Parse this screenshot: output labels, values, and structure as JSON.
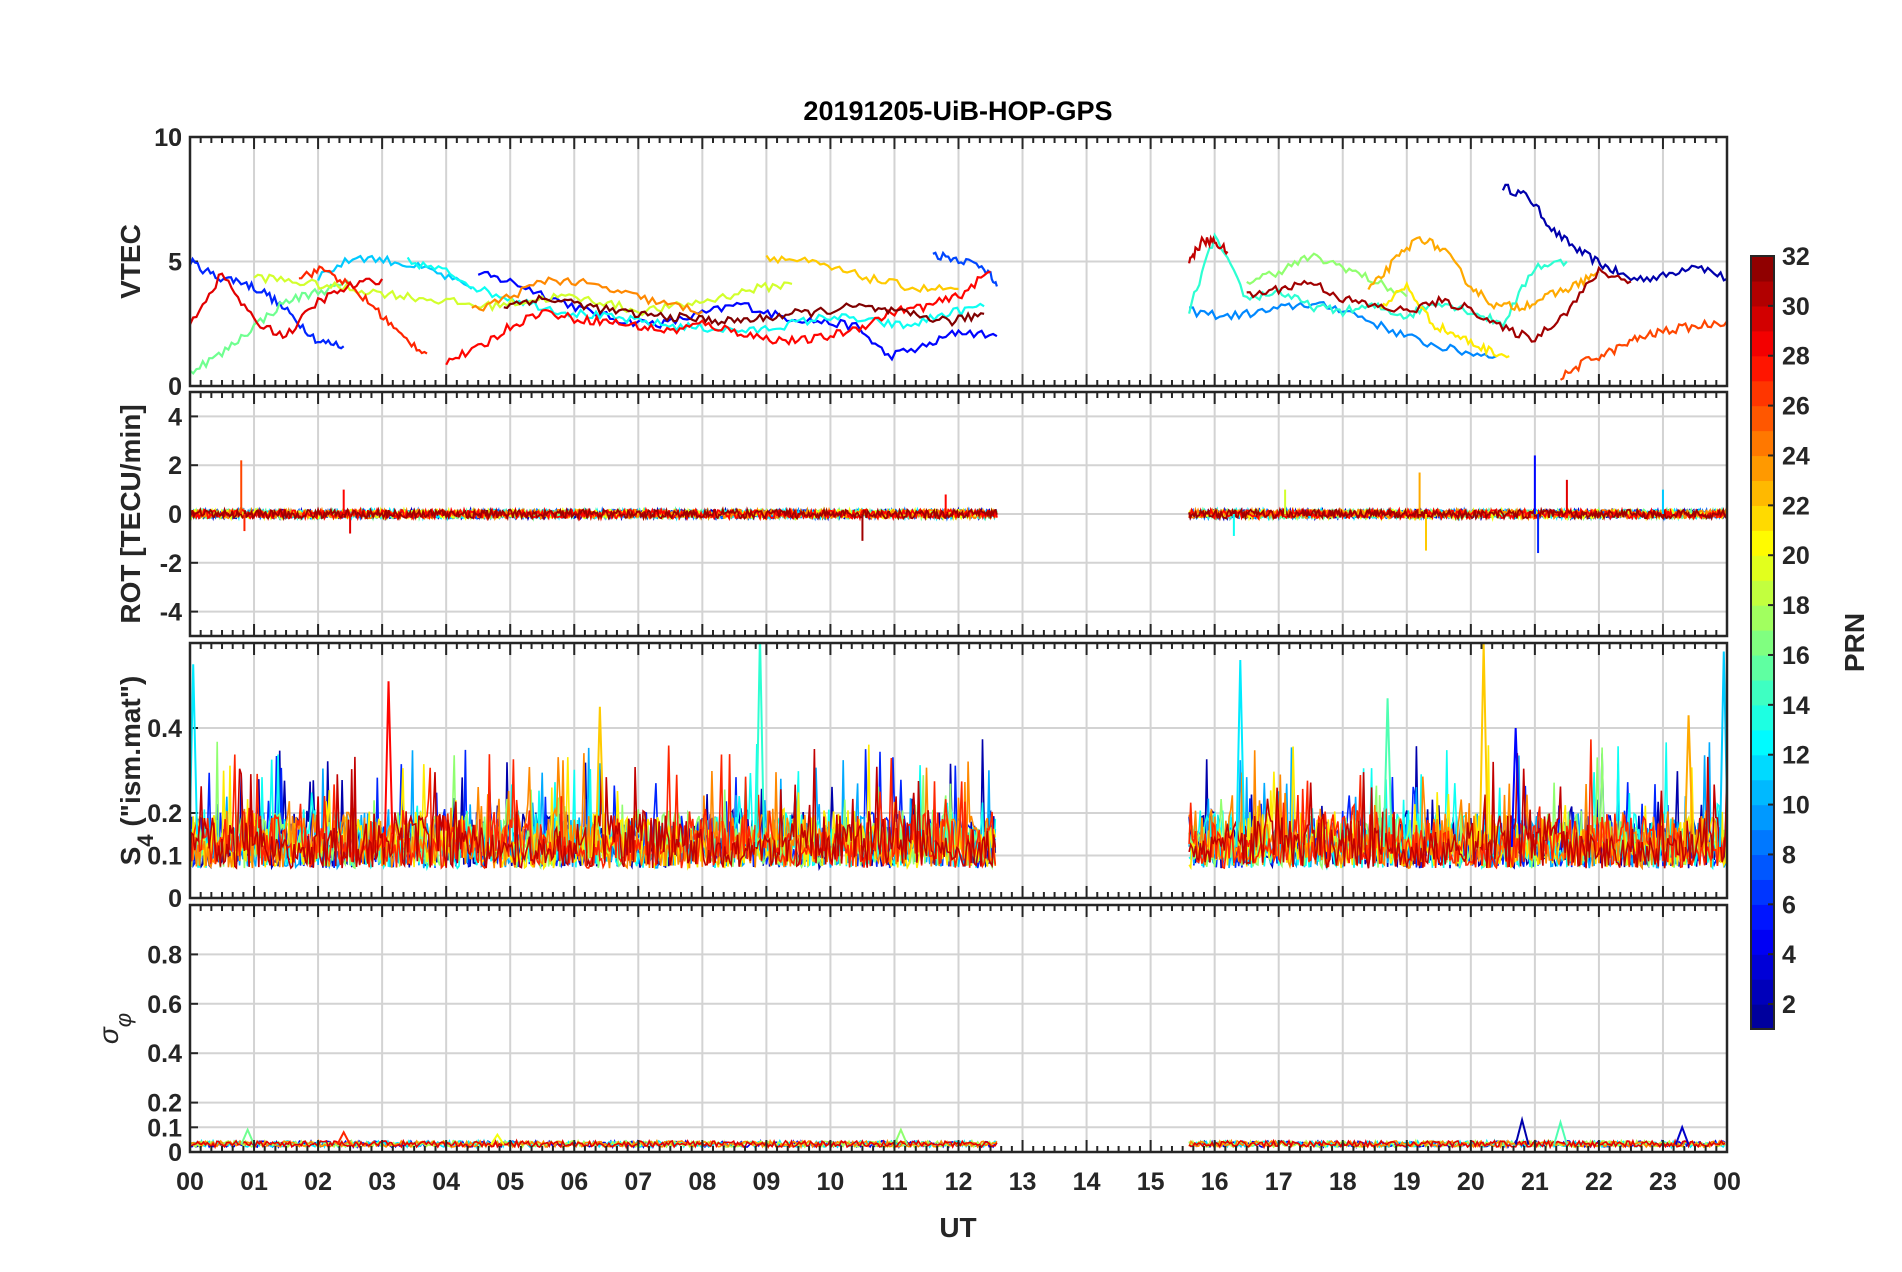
{
  "title": "20191205-UiB-HOP-GPS",
  "xlabel": "UT",
  "x_ticks": [
    "00",
    "01",
    "02",
    "03",
    "04",
    "05",
    "06",
    "07",
    "08",
    "09",
    "10",
    "11",
    "12",
    "13",
    "14",
    "15",
    "16",
    "17",
    "18",
    "19",
    "20",
    "21",
    "22",
    "23",
    "00"
  ],
  "colors": {
    "axes": "#262626",
    "grid": "#d3d3d3",
    "jet_colormap": [
      "#00008f",
      "#0000ff",
      "#0080ff",
      "#00ffff",
      "#80ff80",
      "#ffff00",
      "#ff8000",
      "#ff0000",
      "#800000"
    ]
  },
  "colorbar": {
    "label": "PRN",
    "range": [
      1,
      32
    ],
    "ticks": [
      "2",
      "4",
      "6",
      "8",
      "10",
      "12",
      "14",
      "16",
      "18",
      "20",
      "22",
      "24",
      "26",
      "28",
      "30",
      "32"
    ]
  },
  "chart_data": [
    {
      "type": "line",
      "ylabel": "VTEC",
      "ylim": [
        0,
        10
      ],
      "y_ticks": [
        "0",
        "5",
        "10"
      ],
      "xlim": [
        0,
        24
      ],
      "grid": true,
      "series": [
        {
          "prn": 2,
          "x": [
            20.5,
            20.9,
            21.3,
            21.7,
            22.1,
            22.5,
            23.0,
            23.5,
            24.0
          ],
          "y": [
            8.0,
            7.6,
            6.2,
            5.4,
            4.8,
            4.3,
            4.4,
            4.9,
            4.3
          ]
        },
        {
          "prn": 5,
          "x": [
            4.5,
            5.0,
            5.6,
            6.2,
            6.8,
            7.4,
            8.0,
            8.6,
            9.2,
            9.8,
            10.4,
            10.9,
            11.5,
            12.0,
            12.6
          ],
          "y": [
            4.5,
            4.2,
            3.6,
            3.0,
            2.6,
            2.5,
            2.9,
            3.3,
            2.8,
            2.6,
            2.4,
            1.2,
            1.6,
            2.2,
            2.0
          ]
        },
        {
          "prn": 6,
          "x": [
            0.0,
            0.4,
            0.8,
            1.2,
            1.6,
            2.0,
            2.4
          ],
          "y": [
            5.0,
            4.4,
            4.2,
            3.7,
            2.8,
            1.8,
            1.6
          ]
        },
        {
          "prn": 7,
          "x": [
            11.6,
            12.0,
            12.4,
            12.6
          ],
          "y": [
            5.3,
            5.1,
            4.8,
            4.0
          ]
        },
        {
          "prn": 9,
          "x": [
            15.6,
            16.2,
            16.8,
            17.4,
            18.0,
            18.6,
            19.2,
            19.8,
            20.4
          ],
          "y": [
            3.0,
            2.8,
            3.0,
            3.3,
            3.1,
            2.4,
            1.8,
            1.4,
            1.2
          ]
        },
        {
          "prn": 11,
          "x": [
            2.0,
            2.6,
            3.2,
            3.8,
            4.4
          ],
          "y": [
            4.4,
            5.2,
            5.0,
            4.6,
            3.9
          ]
        },
        {
          "prn": 13,
          "x": [
            3.4,
            4.0,
            4.6,
            5.2,
            5.8,
            6.4,
            7.0,
            7.6,
            8.2,
            8.8,
            9.4,
            10.0,
            10.6,
            11.2,
            11.8,
            12.4
          ],
          "y": [
            5.0,
            4.6,
            3.8,
            3.4,
            3.0,
            2.8,
            2.6,
            2.4,
            2.3,
            2.2,
            2.5,
            2.8,
            2.6,
            2.4,
            2.9,
            3.2
          ]
        },
        {
          "prn": 14,
          "x": [
            15.6,
            16.0,
            16.5,
            17.0,
            17.5,
            18.0,
            18.5,
            19.0,
            19.5,
            20.0,
            20.5,
            21.0,
            21.5
          ],
          "y": [
            3.0,
            6.0,
            3.5,
            3.8,
            3.2,
            3.0,
            3.2,
            2.8,
            3.4,
            3.0,
            2.5,
            4.8,
            5.0
          ]
        },
        {
          "prn": 16,
          "x": [
            0.0,
            0.5,
            1.0,
            1.5,
            2.0,
            2.5
          ],
          "y": [
            0.6,
            1.3,
            2.4,
            3.4,
            3.8,
            4.1
          ]
        },
        {
          "prn": 17,
          "x": [
            16.5,
            17.0,
            17.5,
            18.0,
            18.5,
            19.0
          ],
          "y": [
            4.2,
            4.6,
            5.2,
            4.8,
            4.2,
            3.6
          ]
        },
        {
          "prn": 19,
          "x": [
            1.0,
            1.6,
            2.2,
            2.8,
            3.4,
            4.0,
            4.6,
            5.2,
            5.8,
            6.4,
            7.0,
            7.6,
            8.2,
            8.8,
            9.4
          ],
          "y": [
            4.4,
            4.2,
            4.0,
            3.8,
            3.6,
            3.4,
            3.2,
            3.4,
            3.6,
            3.4,
            3.0,
            3.2,
            3.5,
            3.9,
            4.1
          ]
        },
        {
          "prn": 21,
          "x": [
            18.6,
            19.0,
            19.4,
            19.8,
            20.2,
            20.6
          ],
          "y": [
            3.2,
            4.0,
            2.5,
            2.0,
            1.5,
            1.2
          ]
        },
        {
          "prn": 22,
          "x": [
            9.0,
            9.6,
            10.2,
            10.8,
            11.4,
            12.0
          ],
          "y": [
            5.2,
            5.0,
            4.6,
            4.2,
            3.9,
            3.9
          ]
        },
        {
          "prn": 23,
          "x": [
            18.4,
            18.8,
            19.2,
            19.6,
            20.0,
            20.4,
            20.8,
            21.2,
            21.6,
            22.0
          ],
          "y": [
            3.8,
            5.0,
            6.0,
            5.4,
            4.0,
            3.2,
            3.2,
            3.6,
            4.0,
            4.6
          ]
        },
        {
          "prn": 24,
          "x": [
            4.4,
            5.0,
            5.6,
            6.2,
            6.8,
            7.4,
            8.0
          ],
          "y": [
            3.0,
            3.6,
            4.3,
            4.1,
            3.7,
            3.3,
            3.0
          ]
        },
        {
          "prn": 26,
          "x": [
            21.4,
            21.8,
            22.2,
            22.6,
            23.0,
            23.5,
            24.0
          ],
          "y": [
            0.3,
            1.0,
            1.4,
            1.9,
            2.2,
            2.4,
            2.6
          ]
        },
        {
          "prn": 27,
          "x": [
            1.7,
            2.1,
            2.5,
            2.9,
            3.3,
            3.7
          ],
          "y": [
            4.4,
            4.7,
            4.0,
            3.1,
            2.0,
            1.3
          ]
        },
        {
          "prn": 28,
          "x": [
            4.0,
            4.5,
            5.0,
            5.5,
            6.0,
            6.5,
            7.0,
            7.5,
            8.0,
            8.5,
            9.0,
            9.5,
            10.0,
            10.5,
            11.0,
            11.5,
            12.0,
            12.5
          ],
          "y": [
            1.0,
            1.5,
            2.4,
            3.0,
            2.7,
            2.6,
            2.4,
            2.2,
            2.5,
            2.2,
            1.9,
            1.8,
            2.0,
            2.4,
            3.0,
            3.2,
            3.6,
            4.6
          ]
        },
        {
          "prn": 29,
          "x": [
            0.0,
            0.5,
            1.0,
            1.5,
            2.0,
            2.5,
            3.0
          ],
          "y": [
            2.5,
            4.5,
            2.6,
            2.0,
            3.4,
            4.0,
            4.3
          ]
        },
        {
          "prn": 30,
          "x": [
            15.6,
            15.8,
            16.0,
            16.2
          ],
          "y": [
            5.0,
            5.8,
            5.8,
            5.4
          ]
        },
        {
          "prn": 31,
          "x": [
            16.5,
            17.0,
            17.5,
            18.0,
            18.5,
            19.0,
            19.5,
            20.0,
            20.5,
            21.0,
            21.5,
            22.0,
            22.5
          ],
          "y": [
            3.6,
            3.9,
            4.2,
            3.5,
            3.2,
            3.0,
            3.4,
            3.1,
            2.3,
            1.9,
            3.0,
            4.6,
            4.2
          ]
        },
        {
          "prn": 32,
          "x": [
            4.9,
            5.4,
            5.9,
            6.4,
            6.9,
            7.4,
            7.9,
            8.4,
            8.9,
            9.4,
            9.9,
            10.4,
            10.9,
            11.4,
            11.9,
            12.4
          ],
          "y": [
            3.2,
            3.5,
            3.4,
            3.1,
            2.9,
            2.8,
            2.7,
            2.6,
            2.7,
            2.9,
            3.0,
            3.2,
            3.0,
            2.8,
            2.6,
            2.9
          ]
        }
      ]
    },
    {
      "type": "line",
      "ylabel": "ROT [TECU/min]",
      "ylim": [
        -5,
        5
      ],
      "y_ticks": [
        "-4",
        "-2",
        "0",
        "2",
        "4"
      ],
      "xlim": [
        0,
        24
      ],
      "grid": true,
      "note_segments": [
        [
          0,
          12.6
        ],
        [
          15.6,
          24
        ]
      ],
      "noise_level": 0.18,
      "spikes": [
        {
          "x": 0.8,
          "y": 2.2,
          "prn": 26
        },
        {
          "x": 0.85,
          "y": -0.7,
          "prn": 27
        },
        {
          "x": 2.4,
          "y": 1.0,
          "prn": 28
        },
        {
          "x": 2.5,
          "y": -0.8,
          "prn": 29
        },
        {
          "x": 10.5,
          "y": -1.1,
          "prn": 31
        },
        {
          "x": 11.8,
          "y": 0.8,
          "prn": 28
        },
        {
          "x": 19.2,
          "y": 1.7,
          "prn": 23
        },
        {
          "x": 19.3,
          "y": -1.5,
          "prn": 22
        },
        {
          "x": 21.0,
          "y": 2.4,
          "prn": 5
        },
        {
          "x": 21.05,
          "y": -1.6,
          "prn": 6
        },
        {
          "x": 21.5,
          "y": 1.4,
          "prn": 29
        },
        {
          "x": 16.3,
          "y": -0.9,
          "prn": 13
        },
        {
          "x": 17.1,
          "y": 1.0,
          "prn": 19
        },
        {
          "x": 23.0,
          "y": 1.0,
          "prn": 11
        }
      ]
    },
    {
      "type": "line",
      "ylabel": "S4 (\"ism.mat\")",
      "ylabel_main": "S",
      "ylabel_sub": "4",
      "ylabel_rest": " (\"ism.mat\")",
      "ylim": [
        0,
        0.6
      ],
      "y_ticks": [
        "0",
        "0.1",
        "0.2",
        "0.4"
      ],
      "y_tick_values": [
        0,
        0.1,
        0.2,
        0.4
      ],
      "xlim": [
        0,
        24
      ],
      "grid": true,
      "note_segments": [
        [
          0,
          12.6
        ],
        [
          15.6,
          24
        ]
      ],
      "baseline": 0.07,
      "peaks": [
        {
          "x": 0.05,
          "y": 0.55,
          "prn": 12
        },
        {
          "x": 3.1,
          "y": 0.51,
          "prn": 28
        },
        {
          "x": 6.4,
          "y": 0.45,
          "prn": 22
        },
        {
          "x": 8.9,
          "y": 0.62,
          "prn": 14
        },
        {
          "x": 16.4,
          "y": 0.56,
          "prn": 12
        },
        {
          "x": 18.7,
          "y": 0.47,
          "prn": 15
        },
        {
          "x": 20.2,
          "y": 0.6,
          "prn": 22
        },
        {
          "x": 20.7,
          "y": 0.4,
          "prn": 5
        },
        {
          "x": 23.4,
          "y": 0.43,
          "prn": 23
        },
        {
          "x": 23.95,
          "y": 0.58,
          "prn": 11
        }
      ]
    },
    {
      "type": "line",
      "ylabel": "σ φ",
      "ylabel_main": "σ",
      "ylabel_sub": "φ",
      "ylim": [
        0,
        1
      ],
      "y_ticks": [
        "0",
        "0.1",
        "0.2",
        "0.4",
        "0.6",
        "0.8"
      ],
      "y_tick_values": [
        0,
        0.1,
        0.2,
        0.4,
        0.6,
        0.8
      ],
      "xlim": [
        0,
        24
      ],
      "grid": true,
      "note_segments": [
        [
          0,
          12.6
        ],
        [
          15.6,
          24
        ]
      ],
      "baseline": 0.02,
      "bumps": [
        {
          "x": 0.9,
          "y": 0.09,
          "prn": 16
        },
        {
          "x": 2.4,
          "y": 0.08,
          "prn": 27
        },
        {
          "x": 4.8,
          "y": 0.07,
          "prn": 20
        },
        {
          "x": 11.1,
          "y": 0.09,
          "prn": 17
        },
        {
          "x": 20.8,
          "y": 0.13,
          "prn": 2
        },
        {
          "x": 21.4,
          "y": 0.12,
          "prn": 15
        },
        {
          "x": 23.3,
          "y": 0.1,
          "prn": 3
        }
      ]
    }
  ]
}
